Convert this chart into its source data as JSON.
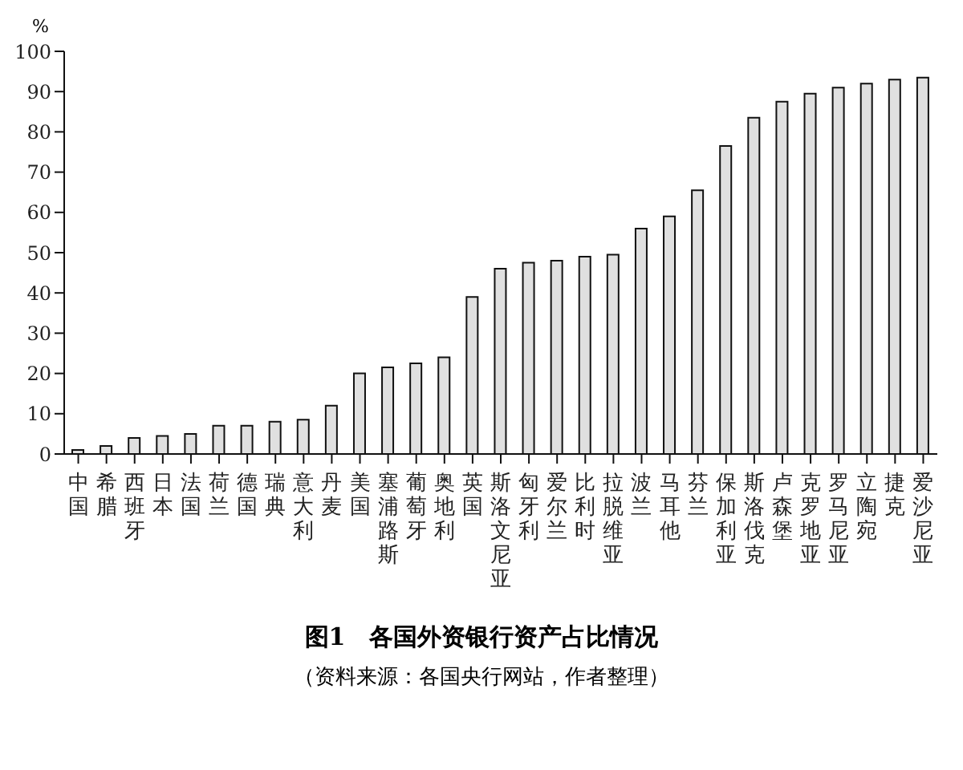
{
  "chart_data": {
    "type": "bar",
    "title": "图1　各国外资银行资产占比情况",
    "ylabel": "%",
    "annotations": [
      "（资料来源：各国央行网站，作者整理）"
    ],
    "categories": [
      "中国",
      "希腊",
      "西班牙",
      "日本",
      "法国",
      "荷兰",
      "德国",
      "瑞典",
      "意大利",
      "丹麦",
      "美国",
      "塞浦路斯",
      "葡萄牙",
      "奥地利",
      "英国",
      "斯洛文尼亚",
      "匈牙利",
      "爱尔兰",
      "比利时",
      "拉脱维亚",
      "波兰",
      "马耳他",
      "芬兰",
      "保加利亚",
      "斯洛伐克",
      "卢森堡",
      "克罗地亚",
      "罗马尼亚",
      "立陶宛",
      "捷克",
      "爱沙尼亚"
    ],
    "values": [
      1,
      2,
      4,
      4.5,
      5,
      7,
      7,
      8,
      8.5,
      12,
      20,
      21.5,
      22.5,
      24,
      39,
      46,
      47.5,
      48,
      49,
      49.5,
      56,
      59,
      65.5,
      76.5,
      83.5,
      87.5,
      89.5,
      91,
      92,
      93,
      93.5
    ],
    "color": "#e0e0e0",
    "ylim": [
      0,
      100
    ],
    "yticks": [
      0,
      10,
      20,
      30,
      40,
      50,
      60,
      70,
      80,
      90,
      100
    ],
    "grid": false,
    "legend": false
  }
}
